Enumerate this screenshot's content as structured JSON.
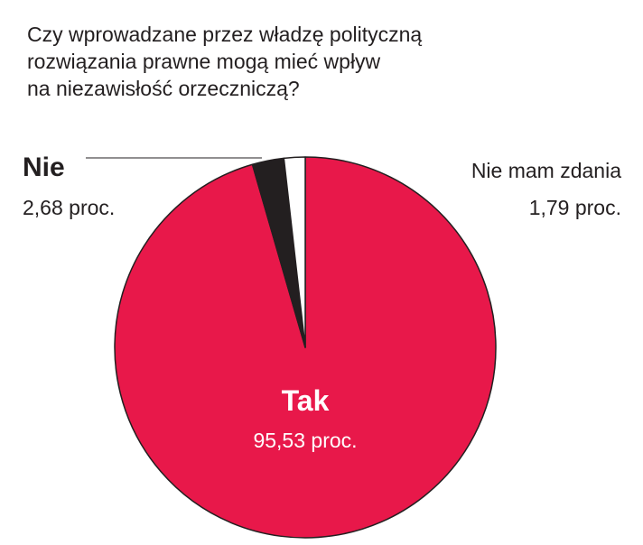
{
  "chart_data": {
    "type": "pie",
    "title": [
      "Czy wprowadzane przez władzę polityczną",
      "rozwiązania prawne mogą mieć wpływ",
      "na niezawisłość orzeczniczą?"
    ],
    "categories": [
      "Tak",
      "Nie",
      "Nie mam zdania"
    ],
    "values": [
      95.53,
      2.68,
      1.79
    ],
    "value_labels": [
      "95,53 proc.",
      "2,68 proc.",
      "1,79 proc."
    ],
    "colors": [
      "#e8184a",
      "#231f20",
      "#ffffff"
    ]
  }
}
